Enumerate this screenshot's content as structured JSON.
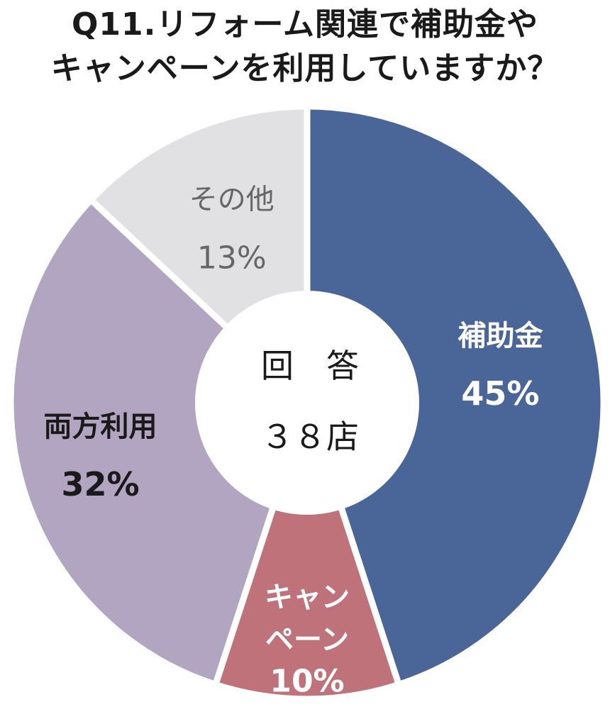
{
  "title_line1": "Q11.リフォーム関連で補助金や",
  "title_line2": "キャンペーンを利用していますか？",
  "center_label": {
    "line1": "回　答",
    "line2": "３８店"
  },
  "chart_data": {
    "type": "pie",
    "title": "Q11.リフォーム関連で補助金やキャンペーンを利用していますか？",
    "series": [
      {
        "label": "補助金",
        "value": 45,
        "display": "45%",
        "color": "#4a6597",
        "text_color": "#ffffff"
      },
      {
        "label": "キャンペーン",
        "label_lines": [
          "キャン",
          "ペーン"
        ],
        "value": 10,
        "display": "10%",
        "color": "#bf727a",
        "text_color": "#ffffff"
      },
      {
        "label": "両方利用",
        "value": 32,
        "display": "32%",
        "color": "#b2a5c1",
        "text_color": "#1a1a1a"
      },
      {
        "label": "その他",
        "value": 13,
        "display": "13%",
        "color": "#e1e1e3",
        "text_color": "#666666"
      }
    ],
    "total_respondents": "３８店",
    "legend": "none"
  }
}
